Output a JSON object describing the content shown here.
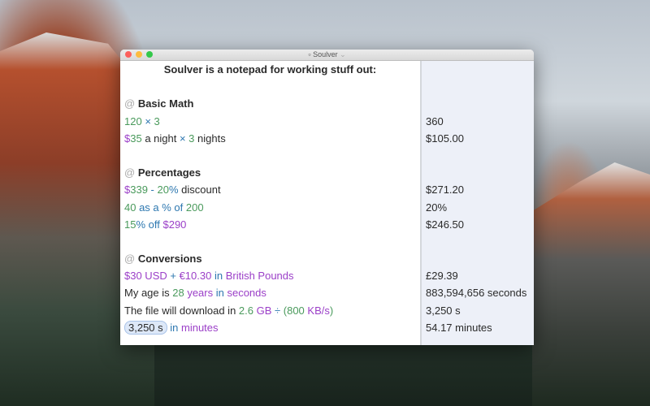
{
  "window": {
    "title": "Soulver"
  },
  "colors": {
    "number": "#4a9a5c",
    "operator": "#2e78b0",
    "unit": "#9b3fc8",
    "results_bg": "#edf0f8"
  },
  "lines": [
    {
      "type": "heading",
      "segments": [
        {
          "t": "Soulver is a notepad for working stuff out:",
          "c": "text"
        }
      ],
      "result": ""
    },
    {
      "type": "blank",
      "segments": [],
      "result": ""
    },
    {
      "type": "section",
      "segments": [
        {
          "t": "@ ",
          "c": "at"
        },
        {
          "t": "Basic Math",
          "c": "text"
        }
      ],
      "result": ""
    },
    {
      "type": "line",
      "segments": [
        {
          "t": "120",
          "c": "num"
        },
        {
          "t": " × ",
          "c": "op"
        },
        {
          "t": "3",
          "c": "num"
        }
      ],
      "result": "360"
    },
    {
      "type": "line",
      "segments": [
        {
          "t": "$",
          "c": "unit"
        },
        {
          "t": "35",
          "c": "num"
        },
        {
          "t": " a night ",
          "c": "text"
        },
        {
          "t": "×",
          "c": "op"
        },
        {
          "t": " 3",
          "c": "num"
        },
        {
          "t": " nights",
          "c": "text"
        }
      ],
      "result": "$105.00"
    },
    {
      "type": "blank",
      "segments": [],
      "result": ""
    },
    {
      "type": "section",
      "segments": [
        {
          "t": "@ ",
          "c": "at"
        },
        {
          "t": "Percentages",
          "c": "text"
        }
      ],
      "result": ""
    },
    {
      "type": "line",
      "segments": [
        {
          "t": "$",
          "c": "unit"
        },
        {
          "t": "339",
          "c": "num"
        },
        {
          "t": " - ",
          "c": "op"
        },
        {
          "t": "20",
          "c": "num"
        },
        {
          "t": "%",
          "c": "op"
        },
        {
          "t": " discount",
          "c": "text"
        }
      ],
      "result": "$271.20"
    },
    {
      "type": "line",
      "segments": [
        {
          "t": "40",
          "c": "num"
        },
        {
          "t": " as a % of ",
          "c": "op"
        },
        {
          "t": "200",
          "c": "num"
        }
      ],
      "result": "20%"
    },
    {
      "type": "line",
      "segments": [
        {
          "t": "15",
          "c": "num"
        },
        {
          "t": "% off ",
          "c": "op"
        },
        {
          "t": "$290",
          "c": "unit"
        }
      ],
      "result": "$246.50"
    },
    {
      "type": "blank",
      "segments": [],
      "result": ""
    },
    {
      "type": "section",
      "segments": [
        {
          "t": "@ ",
          "c": "at"
        },
        {
          "t": "Conversions",
          "c": "text"
        }
      ],
      "result": ""
    },
    {
      "type": "line",
      "segments": [
        {
          "t": "$30 USD",
          "c": "unit"
        },
        {
          "t": " + ",
          "c": "op"
        },
        {
          "t": "€10.30",
          "c": "unit"
        },
        {
          "t": " in ",
          "c": "op"
        },
        {
          "t": "British Pounds",
          "c": "unit"
        }
      ],
      "result": "£29.39"
    },
    {
      "type": "line",
      "segments": [
        {
          "t": "My age is ",
          "c": "text"
        },
        {
          "t": "28",
          "c": "num"
        },
        {
          "t": " years",
          "c": "unit"
        },
        {
          "t": " in ",
          "c": "op"
        },
        {
          "t": "seconds",
          "c": "unit"
        }
      ],
      "result": "883,594,656 seconds"
    },
    {
      "type": "line",
      "segments": [
        {
          "t": "The file will download in ",
          "c": "text"
        },
        {
          "t": "2.6",
          "c": "num"
        },
        {
          "t": " GB",
          "c": "unit"
        },
        {
          "t": " ÷ ",
          "c": "op"
        },
        {
          "t": "(",
          "c": "num"
        },
        {
          "t": "800",
          "c": "num"
        },
        {
          "t": " KB/s",
          "c": "unit"
        },
        {
          "t": ")",
          "c": "num"
        }
      ],
      "result": "3,250 s"
    },
    {
      "type": "line",
      "segments": [
        {
          "t": "3,250 s",
          "c": "token"
        },
        {
          "t": " in ",
          "c": "op"
        },
        {
          "t": "minutes",
          "c": "unit"
        }
      ],
      "result": "54.17 minutes"
    }
  ]
}
